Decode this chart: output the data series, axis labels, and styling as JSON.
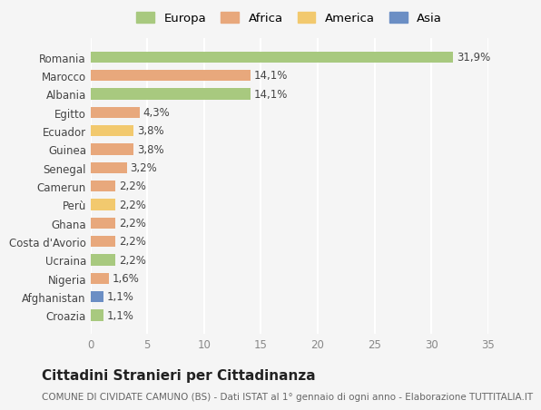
{
  "categories": [
    "Romania",
    "Marocco",
    "Albania",
    "Egitto",
    "Ecuador",
    "Guinea",
    "Senegal",
    "Camerun",
    "Perù",
    "Ghana",
    "Costa d'Avorio",
    "Ucraina",
    "Nigeria",
    "Afghanistan",
    "Croazia"
  ],
  "values": [
    31.9,
    14.1,
    14.1,
    4.3,
    3.8,
    3.8,
    3.2,
    2.2,
    2.2,
    2.2,
    2.2,
    2.2,
    1.6,
    1.1,
    1.1
  ],
  "labels": [
    "31,9%",
    "14,1%",
    "14,1%",
    "4,3%",
    "3,8%",
    "3,8%",
    "3,2%",
    "2,2%",
    "2,2%",
    "2,2%",
    "2,2%",
    "2,2%",
    "1,6%",
    "1,1%",
    "1,1%"
  ],
  "continents": [
    "Europa",
    "Africa",
    "Europa",
    "Africa",
    "America",
    "Africa",
    "Africa",
    "Africa",
    "America",
    "Africa",
    "Africa",
    "Europa",
    "Africa",
    "Asia",
    "Europa"
  ],
  "continent_colors": {
    "Europa": "#a8c97f",
    "Africa": "#e8a87c",
    "America": "#f2c96e",
    "Asia": "#6b8ec4"
  },
  "legend_order": [
    "Europa",
    "Africa",
    "America",
    "Asia"
  ],
  "title": "Cittadini Stranieri per Cittadinanza",
  "subtitle": "COMUNE DI CIVIDATE CAMUNO (BS) - Dati ISTAT al 1° gennaio di ogni anno - Elaborazione TUTTITALIA.IT",
  "xlim": [
    0,
    35
  ],
  "xticks": [
    0,
    5,
    10,
    15,
    20,
    25,
    30,
    35
  ],
  "background_color": "#f5f5f5",
  "plot_bg_color": "#f5f5f5",
  "grid_color": "#ffffff",
  "bar_height": 0.6,
  "label_fontsize": 8.5,
  "tick_fontsize": 8.5,
  "title_fontsize": 11,
  "subtitle_fontsize": 7.5
}
